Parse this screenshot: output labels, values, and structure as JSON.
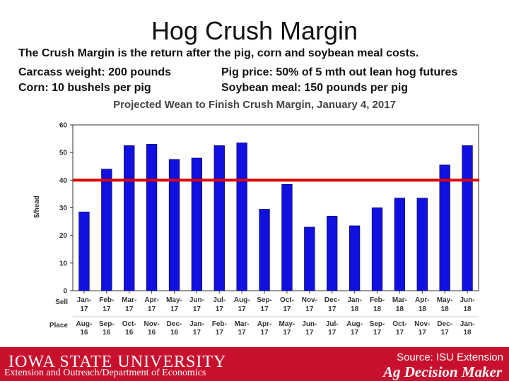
{
  "slide": {
    "title": "Hog Crush Margin",
    "description_line1": "The Crush Margin is the return after the pig, corn and soybean meal costs.",
    "carcass": "Carcass weight:  200 pounds",
    "pig_price": "Pig price:  50% of 5 mth out lean hog futures",
    "corn": "Corn:  10 bushels per pig",
    "soy": "Soybean meal:  150 pounds per pig"
  },
  "footer": {
    "logo": "IOWA STATE UNIVERSITY",
    "dept": "Extension and Outreach/Department of Economics",
    "source": "Source: ISU Extension",
    "brand": "Ag Decision Maker"
  },
  "colors": {
    "bar": "#1010e0",
    "reference_line": "#e00000",
    "footer": "#c8102e"
  },
  "chart_data": {
    "type": "bar",
    "title": "Projected Wean to Finish Crush Margin, January 4, 2017",
    "ylabel": "$/head",
    "ylim": [
      0,
      60
    ],
    "yticks": [
      0,
      10,
      20,
      30,
      40,
      50,
      60
    ],
    "row_label_sell": "Sell",
    "row_label_place": "Place",
    "sell_top": [
      "Jan-",
      "Feb-",
      "Mar-",
      "Apr-",
      "May-",
      "Jun-",
      "Jul-",
      "Aug-",
      "Sep-",
      "Oct-",
      "Nov-",
      "Dec-",
      "Jan-",
      "Feb-",
      "Mar-",
      "Apr-",
      "May-",
      "Jun-"
    ],
    "sell_bottom": [
      "17",
      "17",
      "17",
      "17",
      "17",
      "17",
      "17",
      "17",
      "17",
      "17",
      "17",
      "17",
      "18",
      "18",
      "18",
      "18",
      "18",
      "18"
    ],
    "place_top": [
      "Aug-",
      "Sep-",
      "Oct-",
      "Nov-",
      "Dec-",
      "Jan-",
      "Feb-",
      "Mar-",
      "Apr-",
      "May-",
      "Jun-",
      "Jul-",
      "Aug-",
      "Sep-",
      "Oct-",
      "Nov-",
      "Dec-",
      "Jan-"
    ],
    "place_bottom": [
      "16",
      "16",
      "16",
      "16",
      "16",
      "17",
      "17",
      "17",
      "17",
      "17",
      "17",
      "17",
      "17",
      "17",
      "17",
      "17",
      "17",
      "18"
    ],
    "values": [
      28.5,
      44,
      52.5,
      53,
      47.5,
      48,
      52.5,
      53.5,
      29.5,
      38.5,
      23,
      27,
      23.5,
      30,
      33.5,
      33.5,
      45.5,
      52.5
    ],
    "reference_line": 40,
    "grid": false
  }
}
